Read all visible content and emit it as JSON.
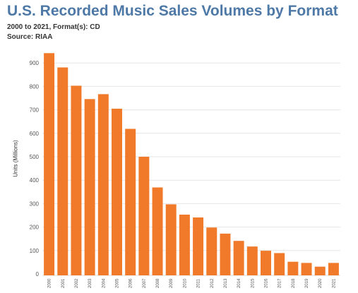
{
  "header": {
    "title": "U.S. Recorded Music Sales Volumes by Format",
    "subtitle": "2000 to 2021, Format(s): CD",
    "source": "Source: RIAA"
  },
  "colors": {
    "title": "#4e79a7",
    "bar": "#f07a2a",
    "grid": "#e6e6e6",
    "axis_text": "#555555"
  },
  "chart_data": {
    "type": "bar",
    "title": "U.S. Recorded Music Sales Volumes by Format",
    "subtitle": "2000 to 2021, Format(s): CD",
    "ylabel": "Units (Millions)",
    "xlabel": "",
    "categories": [
      "2000",
      "2001",
      "2002",
      "2003",
      "2004",
      "2005",
      "2006",
      "2007",
      "2008",
      "2009",
      "2010",
      "2011",
      "2012",
      "2013",
      "2014",
      "2015",
      "2016",
      "2017",
      "2018",
      "2019",
      "2020",
      "2021"
    ],
    "values": [
      942,
      881,
      803,
      746,
      767,
      705,
      619,
      500,
      369,
      297,
      253,
      241,
      198,
      172,
      141,
      117,
      99,
      89,
      52,
      47,
      31,
      47
    ],
    "y_ticks": [
      0,
      100,
      200,
      300,
      400,
      500,
      600,
      700,
      800,
      900
    ],
    "ylim": [
      0,
      1000
    ],
    "grid": true,
    "legend": "none"
  }
}
